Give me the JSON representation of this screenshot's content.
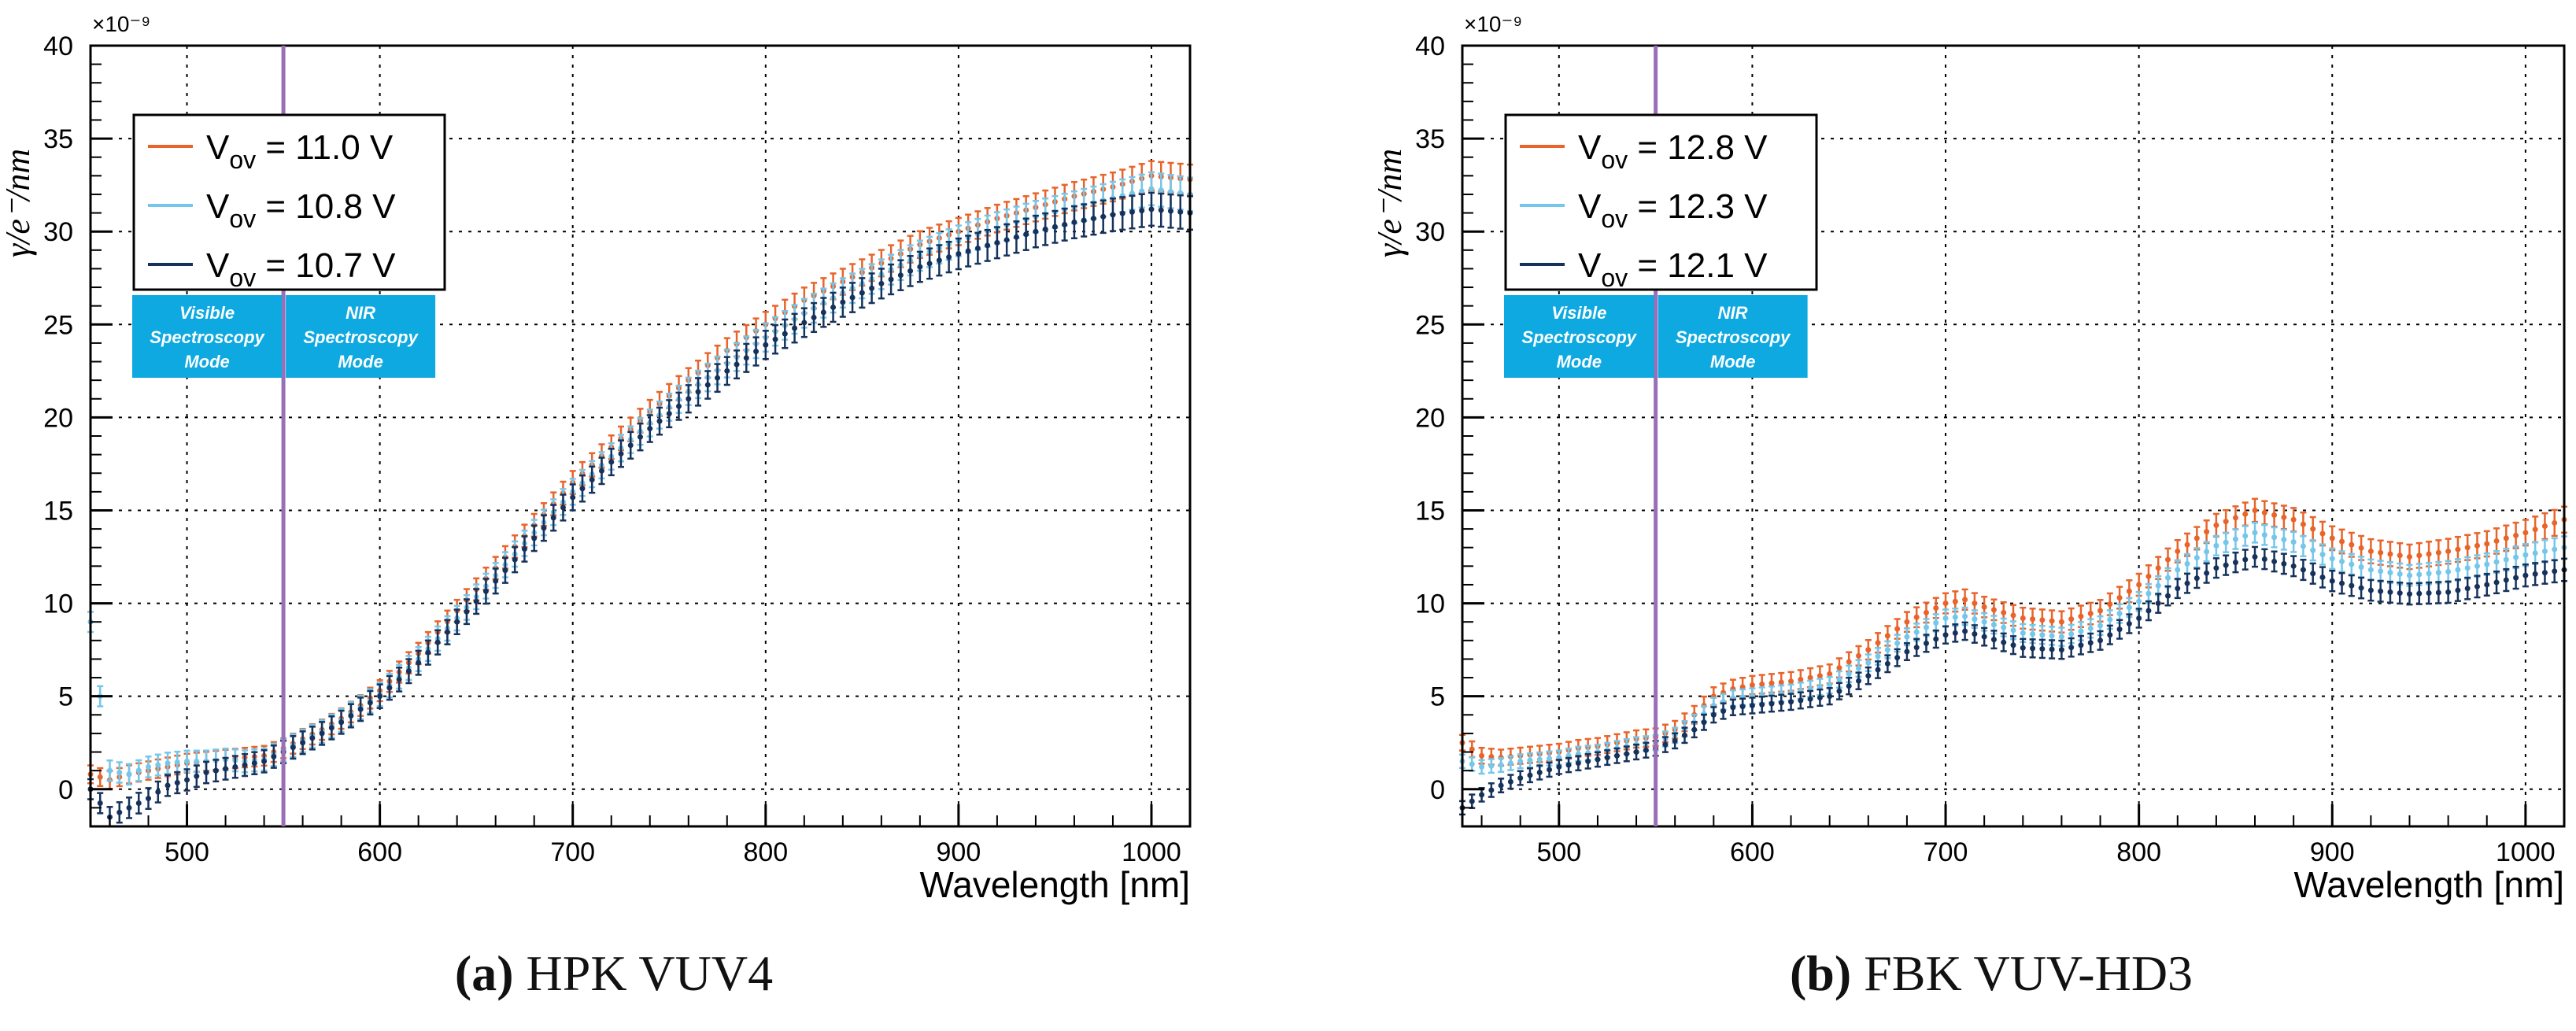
{
  "colors": {
    "orange": "#e8642a",
    "lightblue": "#74c6ea",
    "navy": "#16325c",
    "purple": "#9b6fb8",
    "modebox": "#0da9e0",
    "grid": "#000000"
  },
  "chart_data": [
    {
      "type": "scatter",
      "panel_label": "(a)",
      "title": "HPK VUV4",
      "xlabel": "Wavelength [nm]",
      "ylabel": "γ/e⁻/nm",
      "y_multiplier": "×10⁻⁹",
      "xlim": [
        450,
        1020
      ],
      "ylim": [
        -2,
        40
      ],
      "xticks": [
        "500",
        "600",
        "700",
        "800",
        "900",
        "1000"
      ],
      "yticks": [
        "0",
        "5",
        "10",
        "15",
        "20",
        "25",
        "30",
        "35",
        "40"
      ],
      "grid": true,
      "legend_position": "top-left",
      "vertical_line_x": 550,
      "mode_boxes": [
        {
          "label_lines": [
            "Visible",
            "Spectroscopy",
            "Mode"
          ]
        },
        {
          "label_lines": [
            "NIR",
            "Spectroscopy",
            "Mode"
          ]
        }
      ],
      "x": [
        450,
        460,
        470,
        480,
        490,
        500,
        510,
        520,
        530,
        540,
        550,
        560,
        570,
        580,
        590,
        600,
        620,
        640,
        660,
        680,
        700,
        720,
        740,
        760,
        780,
        800,
        820,
        840,
        860,
        880,
        900,
        920,
        940,
        960,
        980,
        1000,
        1020
      ],
      "series": [
        {
          "name": "Vov = 11.0 V",
          "legend_main": "V",
          "legend_sub": "ov",
          "legend_value": " = 11.0 V",
          "values": [
            0.8,
            0.5,
            0.8,
            1.0,
            1.2,
            1.4,
            1.5,
            1.6,
            1.7,
            1.8,
            2.2,
            2.7,
            3.2,
            3.8,
            4.5,
            5.3,
            7.3,
            9.6,
            11.9,
            14.2,
            16.5,
            18.4,
            20.3,
            22.0,
            23.6,
            25.0,
            26.3,
            27.3,
            28.3,
            29.3,
            30.0,
            30.7,
            31.3,
            31.9,
            32.4,
            33.0,
            32.8
          ],
          "error": 0.8
        },
        {
          "name": "Vov = 10.8 V",
          "legend_main": "V",
          "legend_sub": "ov",
          "legend_value": " = 10.8 V",
          "values": [
            9.0,
            1.0,
            0.8,
            1.2,
            1.4,
            1.5,
            1.5,
            1.6,
            1.5,
            1.6,
            2.1,
            2.6,
            3.1,
            3.7,
            4.4,
            5.1,
            7.0,
            9.2,
            11.5,
            13.8,
            16.0,
            17.9,
            19.7,
            21.4,
            22.9,
            24.3,
            25.6,
            26.7,
            27.7,
            28.7,
            29.5,
            30.2,
            30.8,
            31.3,
            31.8,
            32.3,
            32.0
          ],
          "error": 0.9
        },
        {
          "name": "Vov = 10.7 V",
          "legend_main": "V",
          "legend_sub": "ov",
          "legend_value": " = 10.7 V",
          "values": [
            0.0,
            -1.5,
            -1.0,
            -0.5,
            0.2,
            0.5,
            0.9,
            1.1,
            1.3,
            1.5,
            2.0,
            2.5,
            3.0,
            3.6,
            4.3,
            5.0,
            6.8,
            9.0,
            11.2,
            13.5,
            15.7,
            17.6,
            19.4,
            21.0,
            22.5,
            23.9,
            25.1,
            26.2,
            27.2,
            28.1,
            28.8,
            29.4,
            30.0,
            30.5,
            30.9,
            31.2,
            31.0
          ],
          "error": 0.9
        }
      ]
    },
    {
      "type": "scatter",
      "panel_label": "(b)",
      "title": "FBK VUV-HD3",
      "xlabel": "Wavelength [nm]",
      "ylabel": "γ/e⁻/nm",
      "y_multiplier": "×10⁻⁹",
      "xlim": [
        450,
        1020
      ],
      "ylim": [
        -2,
        40
      ],
      "xticks": [
        "500",
        "600",
        "700",
        "800",
        "900",
        "1000"
      ],
      "yticks": [
        "0",
        "5",
        "10",
        "15",
        "20",
        "25",
        "30",
        "35",
        "40"
      ],
      "grid": true,
      "legend_position": "top-left",
      "vertical_line_x": 550,
      "mode_boxes": [
        {
          "label_lines": [
            "Visible",
            "Spectroscopy",
            "Mode"
          ]
        },
        {
          "label_lines": [
            "NIR",
            "Spectroscopy",
            "Mode"
          ]
        }
      ],
      "x": [
        450,
        460,
        470,
        480,
        490,
        500,
        510,
        520,
        530,
        540,
        550,
        560,
        570,
        580,
        590,
        600,
        620,
        640,
        660,
        680,
        700,
        710,
        720,
        740,
        760,
        780,
        800,
        820,
        840,
        860,
        880,
        900,
        920,
        940,
        960,
        980,
        1000,
        1020
      ],
      "series": [
        {
          "name": "Vov = 12.8 V",
          "legend_main": "V",
          "legend_sub": "ov",
          "legend_value": " = 12.8 V",
          "values": [
            2.5,
            1.8,
            1.7,
            1.8,
            1.9,
            2.0,
            2.2,
            2.3,
            2.5,
            2.7,
            2.8,
            3.2,
            4.0,
            5.0,
            5.4,
            5.6,
            5.8,
            6.2,
            7.5,
            9.0,
            10.0,
            10.2,
            9.8,
            9.2,
            9.0,
            9.6,
            11.0,
            12.8,
            14.2,
            15.0,
            14.5,
            13.5,
            12.8,
            12.5,
            12.8,
            13.2,
            13.8,
            14.5
          ],
          "error": 0.7
        },
        {
          "name": "Vov = 12.3 V",
          "legend_main": "V",
          "legend_sub": "ov",
          "legend_value": " = 12.3 V",
          "values": [
            1.5,
            1.2,
            1.3,
            1.5,
            1.6,
            1.7,
            1.9,
            2.0,
            2.2,
            2.4,
            2.5,
            2.9,
            3.6,
            4.5,
            4.9,
            5.0,
            5.2,
            5.6,
            6.8,
            8.2,
            9.2,
            9.3,
            9.0,
            8.4,
            8.2,
            8.8,
            10.1,
            11.8,
            13.1,
            13.8,
            13.3,
            12.4,
            11.8,
            11.5,
            11.7,
            12.1,
            12.6,
            13.0
          ],
          "error": 0.6
        },
        {
          "name": "Vov = 12.1 V",
          "legend_main": "V",
          "legend_sub": "ov",
          "legend_value": " = 12.1 V",
          "values": [
            -1.0,
            -0.3,
            0.2,
            0.6,
            0.9,
            1.2,
            1.4,
            1.6,
            1.8,
            2.0,
            2.2,
            2.6,
            3.2,
            4.0,
            4.4,
            4.5,
            4.7,
            5.0,
            6.1,
            7.4,
            8.3,
            8.5,
            8.2,
            7.6,
            7.5,
            8.0,
            9.2,
            10.8,
            11.9,
            12.5,
            12.0,
            11.2,
            10.7,
            10.5,
            10.6,
            11.0,
            11.5,
            11.8
          ],
          "error": 0.6
        }
      ]
    }
  ]
}
